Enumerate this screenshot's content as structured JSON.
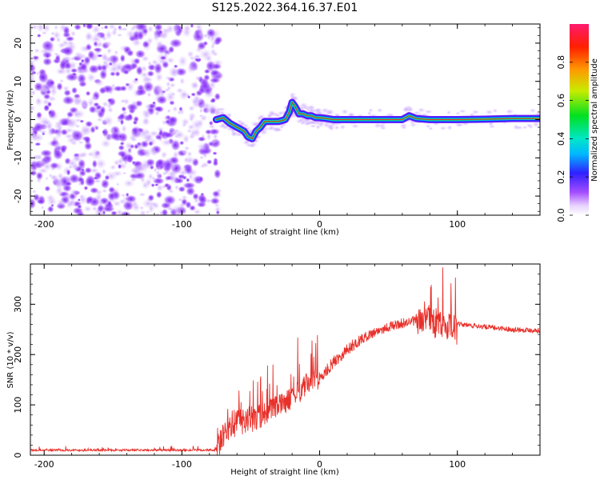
{
  "title": "S125.2022.364.16.37.E01",
  "colors": {
    "background": "#ffffff",
    "snr_line": "#e8302a",
    "spectrogram_noise": "#8a2be2",
    "spectrogram_core": "#e8302a"
  },
  "chart_data": [
    {
      "type": "heatmap",
      "name": "spectrogram",
      "xlabel": "Height of straight line (km)",
      "ylabel": "Frequency (Hz)",
      "xlim": [
        -210,
        160
      ],
      "ylim": [
        -25,
        25
      ],
      "x_ticks": [
        -200,
        -100,
        0,
        100
      ],
      "y_ticks": [
        -20,
        -10,
        0,
        10,
        20
      ],
      "noise_region_x": [
        -210,
        -73
      ],
      "track": {
        "x": [
          -75,
          -70,
          -65,
          -60,
          -55,
          -52,
          -49,
          -46,
          -43,
          -40,
          -35,
          -30,
          -25,
          -22,
          -20,
          -18,
          -15,
          -12,
          -9,
          -6,
          -3,
          0,
          5,
          10,
          20,
          40,
          60,
          65,
          70,
          80,
          100,
          120,
          140,
          160
        ],
        "y": [
          0,
          0.5,
          -1,
          -2,
          -3,
          -4.5,
          -5,
          -3,
          -2,
          -0.5,
          -0.5,
          -0.5,
          0,
          2,
          4.5,
          3.5,
          1.5,
          1.5,
          1,
          1,
          0.5,
          0.5,
          0.3,
          0,
          0,
          0,
          0,
          1,
          0.3,
          0,
          0,
          0.1,
          0.3,
          0.3
        ]
      },
      "colorbar": {
        "label": "Normalized spectral amplitude",
        "range": [
          0,
          1
        ],
        "ticks": [
          "0.0",
          "0.2",
          "0.4",
          "0.6",
          "0.8"
        ],
        "tick_values": [
          0,
          0.2,
          0.4,
          0.6,
          0.8
        ]
      }
    },
    {
      "type": "line",
      "name": "snr",
      "xlabel": "Height of straight line (km)",
      "ylabel": "SNR (10 * v/v)",
      "xlim": [
        -210,
        160
      ],
      "ylim": [
        0,
        380
      ],
      "x_ticks": [
        -200,
        -100,
        0,
        100
      ],
      "y_ticks": [
        0,
        100,
        200,
        300
      ],
      "trend": {
        "x": [
          -210,
          -75,
          -65,
          -55,
          -45,
          -35,
          -25,
          -15,
          -8,
          0,
          10,
          20,
          30,
          40,
          50,
          60,
          70,
          80,
          85,
          90,
          100,
          110,
          120,
          140,
          160
        ],
        "y": [
          10,
          10,
          60,
          70,
          75,
          90,
          105,
          125,
          145,
          150,
          185,
          210,
          230,
          245,
          255,
          262,
          268,
          270,
          262,
          258,
          260,
          258,
          255,
          250,
          248
        ]
      }
    }
  ]
}
